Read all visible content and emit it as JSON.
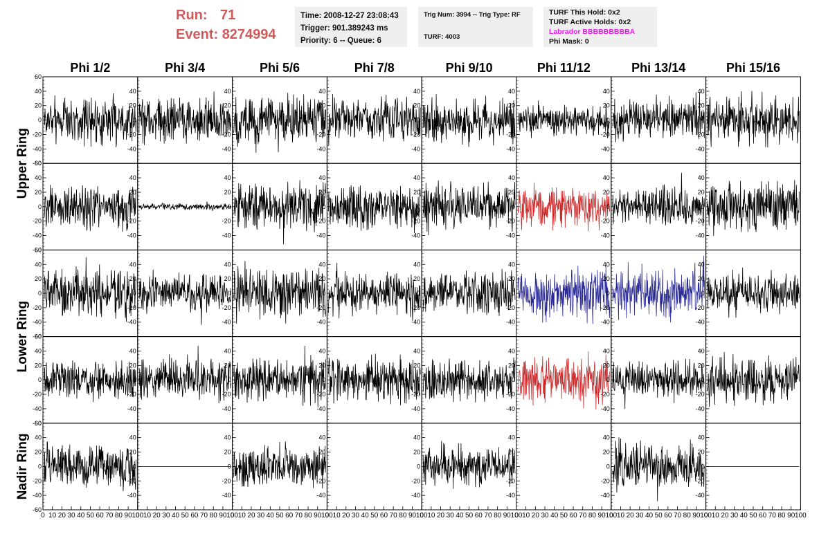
{
  "header": {
    "run_label": "Run:",
    "run_value": "71",
    "event_label": "Event:",
    "event_value": "8274994",
    "time": "Time: 2008-12-27 23:08:43",
    "trigger": "Trigger: 901.389243 ms",
    "priority": "Priority: 6 -- Queue: 6",
    "trig_num": "Trig Num: 3994 -- Trig Type: RF",
    "turf": "TURF: 4003",
    "turf_this_hold": "TURF This Hold: 0x2",
    "turf_active_holds": "TURF Active Holds: 0x2",
    "labrador": "Labrador BBBBBBBBBA",
    "phi_mask": "Phi Mask: 0"
  },
  "colors": {
    "normal": "#000000",
    "red": "#cc2b2b",
    "blue": "#2b2b99",
    "text_red": "#d05a5a",
    "magenta": "#e020e0"
  },
  "chart_data": {
    "type": "line",
    "columns": [
      "Phi 1/2",
      "Phi 3/4",
      "Phi 5/6",
      "Phi 7/8",
      "Phi 9/10",
      "Phi 11/12",
      "Phi 13/14",
      "Phi 15/16"
    ],
    "ring_labels": [
      {
        "label": "Upper Ring",
        "rows": [
          0,
          1
        ]
      },
      {
        "label": "Lower Ring",
        "rows": [
          2,
          3
        ]
      },
      {
        "label": "Nadir Ring",
        "rows": [
          4
        ]
      }
    ],
    "ylim": [
      -60,
      60
    ],
    "xlim": [
      0,
      100
    ],
    "yticks": [
      -60,
      -40,
      -20,
      0,
      20,
      40,
      60
    ],
    "xticks": [
      0,
      10,
      20,
      30,
      40,
      50,
      60,
      70,
      80,
      90,
      100
    ],
    "grid": false,
    "rows": [
      [
        {
          "amp": 15,
          "color": "normal"
        },
        {
          "amp": 14,
          "color": "normal"
        },
        {
          "amp": 16,
          "color": "normal"
        },
        {
          "amp": 14,
          "color": "normal"
        },
        {
          "amp": 14,
          "color": "normal"
        },
        {
          "amp": 10,
          "color": "normal"
        },
        {
          "amp": 14,
          "color": "normal"
        },
        {
          "amp": 16,
          "color": "normal"
        }
      ],
      [
        {
          "amp": 15,
          "color": "normal"
        },
        {
          "amp": 2,
          "color": "normal"
        },
        {
          "amp": 16,
          "color": "normal"
        },
        {
          "amp": 14,
          "color": "normal"
        },
        {
          "amp": 15,
          "color": "normal"
        },
        {
          "amp": 14,
          "color": "red"
        },
        {
          "amp": 12,
          "color": "normal"
        },
        {
          "amp": 16,
          "color": "normal"
        }
      ],
      [
        {
          "amp": 16,
          "color": "normal"
        },
        {
          "amp": 13,
          "color": "normal"
        },
        {
          "amp": 17,
          "color": "normal"
        },
        {
          "amp": 14,
          "color": "normal"
        },
        {
          "amp": 14,
          "color": "normal"
        },
        {
          "amp": 16,
          "color": "blue"
        },
        {
          "amp": 16,
          "color": "blue"
        },
        {
          "amp": 13,
          "color": "normal"
        }
      ],
      [
        {
          "amp": 12,
          "color": "normal"
        },
        {
          "amp": 14,
          "color": "normal"
        },
        {
          "amp": 14,
          "color": "normal"
        },
        {
          "amp": 14,
          "color": "normal"
        },
        {
          "amp": 13,
          "color": "normal"
        },
        {
          "amp": 15,
          "color": "red"
        },
        {
          "amp": 12,
          "color": "normal"
        },
        {
          "amp": 15,
          "color": "normal"
        }
      ],
      [
        {
          "amp": 14,
          "color": "normal"
        },
        {
          "amp": 0,
          "color": "normal"
        },
        {
          "amp": 13,
          "color": "normal"
        },
        {
          "amp": null,
          "color": "normal"
        },
        {
          "amp": 13,
          "color": "normal"
        },
        {
          "amp": null,
          "color": "normal"
        },
        {
          "amp": 15,
          "color": "normal"
        },
        {
          "amp": 0,
          "color": "normal"
        }
      ]
    ]
  }
}
